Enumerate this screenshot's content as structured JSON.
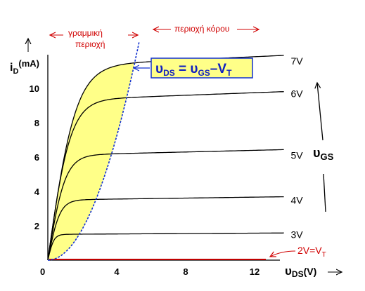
{
  "chart_data": {
    "type": "line",
    "title": "",
    "xlabel": {
      "main": "υ",
      "sub": "DS",
      "unit": "(V)"
    },
    "ylabel": {
      "main": "i",
      "sub": "D",
      "unit": "(mA)"
    },
    "xlim": [
      0,
      15
    ],
    "ylim": [
      0,
      12.7
    ],
    "x_ticks": [
      0,
      4,
      8,
      12
    ],
    "y_ticks": [
      2,
      4,
      6,
      8,
      10
    ],
    "grid": false,
    "series": [
      {
        "name": "3V",
        "saturation_current": 1.5,
        "knee_vds": 0.9
      },
      {
        "name": "4V",
        "saturation_current": 3.5,
        "knee_vds": 1.8
      },
      {
        "name": "5V",
        "saturation_current": 6.1,
        "knee_vds": 2.6
      },
      {
        "name": "6V",
        "saturation_current": 9.3,
        "knee_vds": 3.4
      },
      {
        "name": "7V",
        "saturation_current": 11.3,
        "knee_vds": 4.2
      }
    ],
    "threshold_label": "2V=V",
    "threshold_sub": "T",
    "boundary_equation": {
      "lhs": "υ",
      "lhs_sub": "DS",
      "eq": " = ",
      "mid": "υ",
      "mid_sub": "GS",
      "minus": "–",
      "rhs": "V",
      "rhs_sub": "T"
    },
    "region_linear": [
      "γραμμική",
      "περιοχή"
    ],
    "region_saturation": "περιοχή κόρου",
    "vgs_label": {
      "main": "υ",
      "sub": "GS"
    },
    "origin_label": "0",
    "colors": {
      "linear_fill": "#ffff88",
      "boundary": "#1030d0",
      "note": "#d00000",
      "threshold_line": "#c00000"
    }
  }
}
